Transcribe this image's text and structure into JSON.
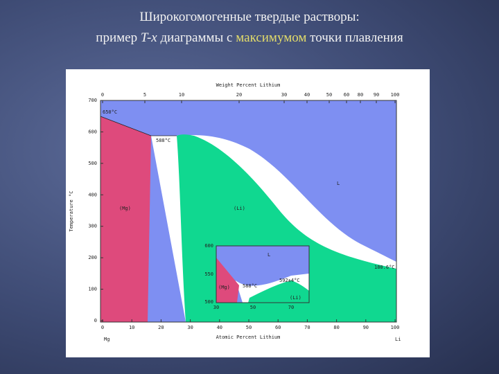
{
  "slide": {
    "title_line1": "Широкогомогенные твердые растворы:",
    "title_line2": {
      "before": "пример ",
      "italic": "T-x",
      "middle": " диаграммы с ",
      "highlight": "максимумом",
      "after": " точки плавления"
    },
    "diagram": {
      "top_axis_label": "Weight Percent Lithium",
      "top_ticks": [
        "0",
        "5",
        "10",
        "20",
        "30",
        "40",
        "50",
        "60",
        "80",
        "90",
        "100"
      ],
      "bottom_axis_label": "Atomic Percent Lithium",
      "bottom_ticks": [
        "0",
        "10",
        "20",
        "30",
        "40",
        "50",
        "60",
        "70",
        "80",
        "90",
        "100"
      ],
      "left_axis_label": "Temperature °C",
      "left_ticks": [
        "700",
        "600",
        "500",
        "400",
        "300",
        "200",
        "100",
        "0"
      ],
      "left_element": "Mg",
      "right_element": "Li",
      "labels": {
        "mg_melt": "650°C",
        "eutectic": "588°C",
        "mg_phase": "(Mg)",
        "li_phase": "(Li)",
        "liquid": "L",
        "li_melt": "180.6°C"
      },
      "inset": {
        "ticks_y": [
          "600",
          "550",
          "500"
        ],
        "ticks_x": [
          "30",
          "50",
          "70"
        ],
        "liquid": "L",
        "mg_phase": "(Mg)",
        "li_phase": "(Li)",
        "eutectic": "588°C",
        "maximum": "592±4°C"
      }
    }
  }
}
